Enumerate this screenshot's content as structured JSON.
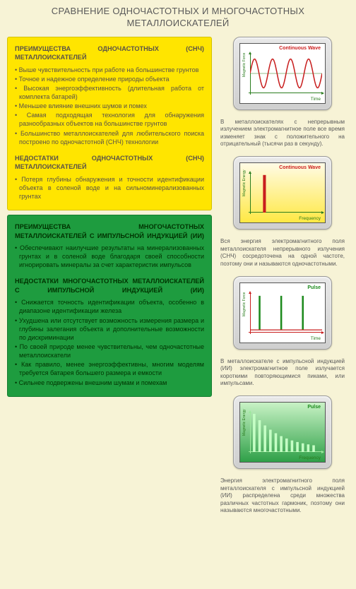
{
  "title_line1": "СРАВНЕНИЕ ОДНОЧАСТОТНЫХ И МНОГОЧАСТОТНЫХ",
  "title_line2": "МЕТАЛЛОИСКАТЕЛЕЙ",
  "left": {
    "yellow": {
      "adv_heading": "ПРЕИМУЩЕСТВА ОДНОЧАСТОТНЫХ (СНЧ) МЕТАЛЛОИСКАТЕЛЕЙ",
      "adv": [
        "Выше чувствительность при работе на большинстве грунтов",
        "Точное и надежное определение природы объекта",
        "Высокая энергоэффективность (длительная работа от комплекта батарей)",
        "Меньшее влияние внешних шумов и помех",
        "Самая подходящая технология для обнаружения разнообразных объектов на большинстве грунтов",
        "Большинство металлоискателей для любительского поиска построено по одночастотной (СНЧ) технологии"
      ],
      "dis_heading": "НЕДОСТАТКИ ОДНОЧАСТОТНЫХ (СНЧ) МЕТАЛЛОИСКАТЕЛЕЙ",
      "dis": [
        "Потеря глубины обнаружения и точности идентификации объекта в соленой воде и на сильноминерализованных грунтах"
      ]
    },
    "green": {
      "adv_heading": "ПРЕИМУЩЕСТВА МНОГОЧАСТОТНЫХ МЕТАЛЛОИСКАТЕЛЕЙ С ИМПУЛЬСНОЙ ИНДУКЦИЕЙ (ИИ)",
      "adv": [
        "Обеспечивают наилучшие результаты на минерализованных грунтах и в соленой воде благодаря своей способности игнорировать минералы за счет характеристик импульсов"
      ],
      "dis_heading": "НЕДОСТАТКИ МНОГОЧАСТОТНЫХ МЕТАЛЛОИСКАТЕЛЕЙ С ИМПУЛЬСНОЙ ИНДУКЦИЕЙ (ИИ)",
      "dis": [
        "Снижается точность идентификации объекта, особенно в диапазоне идентификации железа",
        "Ухудшена или отсутствует возможность измерения размера и глубины залегания объекта и дополнительные возможности по дискриминации",
        "По своей природе менее чувствительны, чем одночастотные металлоискатели",
        "Как правило, менее энергоэффективны, многим моделям требуется батарея большего размера и емкости",
        "Сильнее подвержены внешним шумам и помехам"
      ]
    }
  },
  "right": {
    "charts": [
      {
        "type": "line",
        "bg": "chart-bg-white",
        "title": "Continuous Wave",
        "title_color": "ct-red",
        "xlabel": "Time",
        "ylabel": "Magnetic Force",
        "signal_color": "#c81e1e",
        "axis_color": "#2a7c1e",
        "amplitude": 0.85,
        "cycles": 4,
        "caption": "В металлоискателях с непрерывным излучением электромагнитное поле все время изменяет знак с положительного на отрицательный (тысячи раз в секунду)."
      },
      {
        "type": "single-bar",
        "bg": "chart-bg-yellow",
        "title": "Continuous Wave",
        "title_color": "ct-red",
        "xlabel": "Frequency",
        "ylabel": "Magnetic Energy",
        "bar_color": "#c81e1e",
        "bar_position": 0.18,
        "bar_height": 0.95,
        "axis_color": "#2a7c1e",
        "caption": "Вся энергия электромагнитного поля металлоискателя непрерывного излучения (СНЧ) сосредоточена на одной частоте, поэтому они и называются одночастотными."
      },
      {
        "type": "pulses-time",
        "bg": "chart-bg-white",
        "title": "Pulse",
        "title_color": "ct-green",
        "xlabel": "Time",
        "ylabel": "Magnetic Force",
        "pulse_color": "#1d8a1d",
        "axis_color": "#c81e1e",
        "pulse_count": 3,
        "caption": "В металлоискателе с импульсной индукцией (ИИ) электромагнитное поле излучается короткими повторяющимися пиками, или импульсами."
      },
      {
        "type": "multi-bar",
        "bg": "chart-bg-green",
        "title": "Pulse",
        "title_color": "ct-green",
        "xlabel": "Frequency",
        "ylabel": "Magnetic Energy",
        "bar_color": "#c5ffc5",
        "bar_count": 12,
        "decay": true,
        "axis_color": "#9de89d",
        "caption": "Энергия электромагнитного поля металлоискателя с импульсной индукцией (ИИ) распределена среди множества различных частотных гармоник, поэтому они называются многочастотными."
      }
    ]
  },
  "colors": {
    "page_bg": "#f7f3d6",
    "panel_yellow": "#ffe500",
    "panel_green": "#1e9c3f"
  }
}
